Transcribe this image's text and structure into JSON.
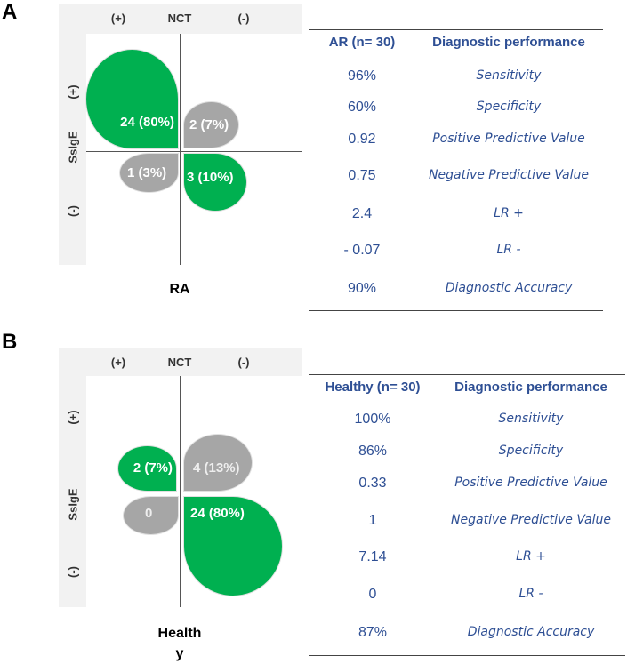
{
  "panels": [
    {
      "letter": "A",
      "x_axis": "NCT",
      "y_axis": "SsIgE",
      "pos": "(+)",
      "neg": "(-)",
      "group_label": "RA",
      "colors": {
        "green": "#00b050",
        "gray": "#a6a6a6"
      },
      "quadrants": {
        "tl": {
          "label": "24 (80%)",
          "count": 24,
          "percent": 80,
          "color": "green"
        },
        "tr": {
          "label": "2 (7%)",
          "count": 2,
          "percent": 7,
          "color": "gray"
        },
        "bl": {
          "label": "1 (3%)",
          "count": 1,
          "percent": 3,
          "color": "gray"
        },
        "br": {
          "label": "3 (10%)",
          "count": 3,
          "percent": 10,
          "color": "green"
        }
      },
      "table": {
        "header_value": "AR (n= 30)",
        "header_label": "Diagnostic performance",
        "rows": [
          {
            "value": "96%",
            "label": "Sensitivity"
          },
          {
            "value": "60%",
            "label": "Specificity"
          },
          {
            "value": "0.92",
            "label": "Positive Predictive Value"
          },
          {
            "value": "0.75",
            "label": "Negative Predictive Value"
          },
          {
            "value": "2.4",
            "label": "LR +"
          },
          {
            "value": "- 0.07",
            "label": "LR -"
          },
          {
            "value": "90%",
            "label": "Diagnostic Accuracy"
          }
        ]
      }
    },
    {
      "letter": "B",
      "x_axis": "NCT",
      "y_axis": "SsIgE",
      "pos": "(+)",
      "neg": "(-)",
      "group_label_1": "Health",
      "group_label_2": "y",
      "quadrants": {
        "tl": {
          "label": "2 (7%)",
          "count": 2,
          "percent": 7,
          "color": "green"
        },
        "tr": {
          "label": "4 (13%)",
          "count": 4,
          "percent": 13,
          "color": "gray"
        },
        "bl": {
          "label": "0",
          "count": 0,
          "percent": 0,
          "color": "gray"
        },
        "br": {
          "label": "24 (80%)",
          "count": 24,
          "percent": 80,
          "color": "green"
        }
      },
      "table": {
        "header_value": "Healthy  (n= 30)",
        "header_label": "Diagnostic performance",
        "rows": [
          {
            "value": "100%",
            "label": "Sensitivity"
          },
          {
            "value": "86%",
            "label": "Specificity"
          },
          {
            "value": "0.33",
            "label": "Positive Predictive Value"
          },
          {
            "value": "1",
            "label": "Negative Predictive Value"
          },
          {
            "value": "7.14",
            "label": "LR +"
          },
          {
            "value": "0",
            "label": "LR -"
          },
          {
            "value": "87%",
            "label": "Diagnostic Accuracy"
          }
        ]
      }
    }
  ]
}
